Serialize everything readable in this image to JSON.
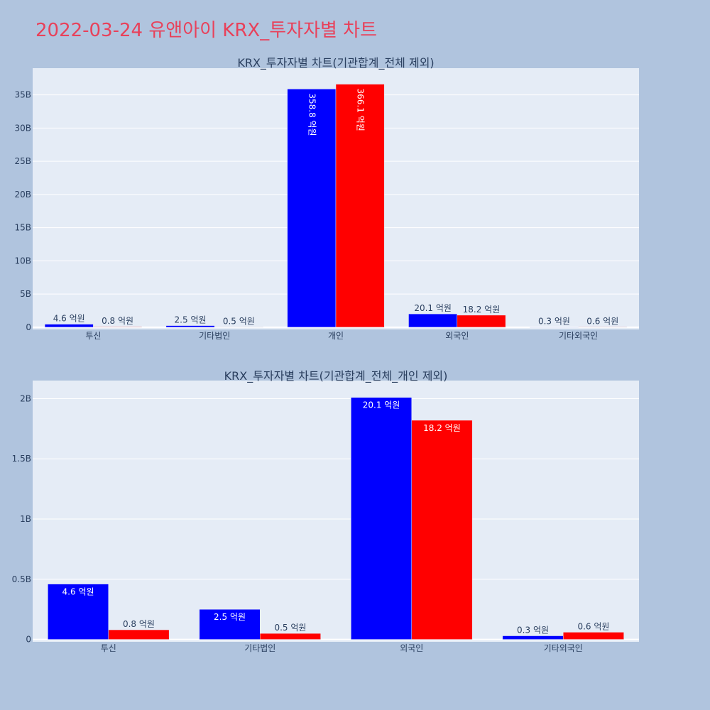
{
  "page_title": "2022-03-24 유앤아이 KRX_투자자별 차트",
  "colors": {
    "background": "#b0c4de",
    "plot_bg": "#e5ecf6",
    "title": "#e8415a",
    "series_a": "#0000ff",
    "series_b": "#ff0000",
    "text": "#2a3f5f"
  },
  "chart_data": [
    {
      "type": "bar",
      "title": "KRX_투자자별 차트(기관합계_전체 제외)",
      "categories": [
        "투신",
        "기타법인",
        "개인",
        "외국인",
        "기타외국인"
      ],
      "series": [
        {
          "values": [
            460000000,
            250000000,
            35880000000,
            2010000000,
            30000000
          ],
          "labels": [
            "4.6 억원",
            "2.5 억원",
            "358.8 억원",
            "20.1 억원",
            "0.3 억원"
          ]
        },
        {
          "values": [
            80000000,
            50000000,
            36610000000,
            1820000000,
            60000000
          ],
          "labels": [
            "0.8 억원",
            "0.5 억원",
            "366.1 억원",
            "18.2 억원",
            "0.6 억원"
          ]
        }
      ],
      "yticks": [
        0,
        5000000000,
        10000000000,
        15000000000,
        20000000000,
        25000000000,
        30000000000,
        35000000000
      ],
      "ytick_labels": [
        "0",
        "5B",
        "10B",
        "15B",
        "20B",
        "25B",
        "30B",
        "35B"
      ],
      "ylim": [
        -330000000,
        39020000000
      ],
      "grid": true
    },
    {
      "type": "bar",
      "title": "KRX_투자자별 차트(기관합계_전체_개인 제외)",
      "categories": [
        "투신",
        "기타법인",
        "외국인",
        "기타외국인"
      ],
      "series": [
        {
          "values": [
            460000000,
            250000000,
            2010000000,
            30000000
          ],
          "labels": [
            "4.6 억원",
            "2.5 억원",
            "20.1 억원",
            "0.3 억원"
          ]
        },
        {
          "values": [
            80000000,
            50000000,
            1820000000,
            60000000
          ],
          "labels": [
            "0.8 억원",
            "0.5 억원",
            "18.2 억원",
            "0.6 억원"
          ]
        }
      ],
      "yticks": [
        0,
        500000000,
        1000000000,
        1500000000,
        2000000000
      ],
      "ytick_labels": [
        "0",
        "0.5B",
        "1B",
        "1.5B",
        "2B"
      ],
      "ylim": [
        -20000000,
        2150000000
      ],
      "grid": true
    }
  ]
}
